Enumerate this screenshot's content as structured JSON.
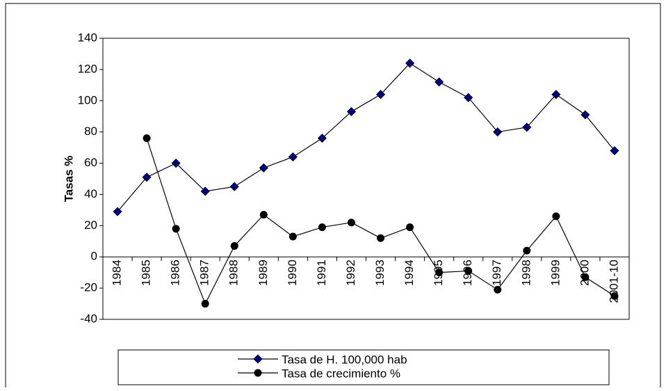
{
  "chart_data": {
    "type": "line",
    "y_label": "Tasas %",
    "categories": [
      "1984",
      "1985",
      "1986",
      "1987",
      "1988",
      "1989",
      "1990",
      "1991",
      "1992",
      "1993",
      "1994",
      "1995",
      "1996",
      "1997",
      "1998",
      "1999",
      "2000",
      "2001-10"
    ],
    "series": [
      {
        "name": "Tasa de H. 100,000 hab",
        "color": "#000080",
        "marker": "diamond",
        "values": [
          29,
          51,
          60,
          42,
          45,
          57,
          64,
          76,
          93,
          104,
          124,
          112,
          102,
          80,
          83,
          104,
          91,
          68
        ]
      },
      {
        "name": "Tasa de crecimiento %",
        "color": "#000000",
        "marker": "circle",
        "values": [
          null,
          76,
          18,
          -30,
          7,
          27,
          13,
          19,
          22,
          12,
          19,
          -10,
          -9,
          -21,
          4,
          26,
          -13,
          -25
        ]
      }
    ],
    "ylim": [
      -40,
      140
    ],
    "yticks": [
      -40,
      -20,
      0,
      20,
      40,
      60,
      80,
      100,
      120,
      140
    ],
    "grid": false
  }
}
